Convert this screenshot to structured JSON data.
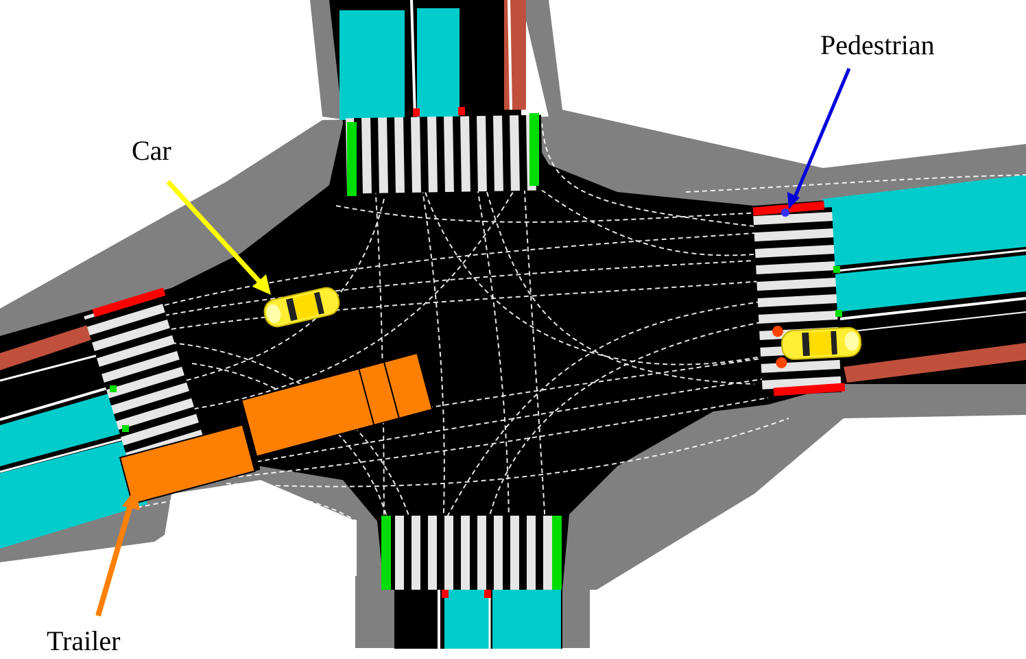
{
  "labels": {
    "car": "Car",
    "pedestrian": "Pedestrian",
    "trailer": "Trailer"
  },
  "colors": {
    "sidewalk": "#808080",
    "road": "#000000",
    "lane_marking": "#ffffff",
    "crosswalk_stripe": "#e6e6e6",
    "bike_lane": "#c0503c",
    "parking": "#00cccc",
    "signal_green": "#00dd00",
    "signal_red": "#ff0000",
    "car": "#ffee33",
    "trailer": "#ff8000",
    "pedestrian": "#3333ff",
    "arrow_car": "#ffff00",
    "arrow_pedestrian": "#0000dd",
    "arrow_trailer": "#ff8000"
  }
}
